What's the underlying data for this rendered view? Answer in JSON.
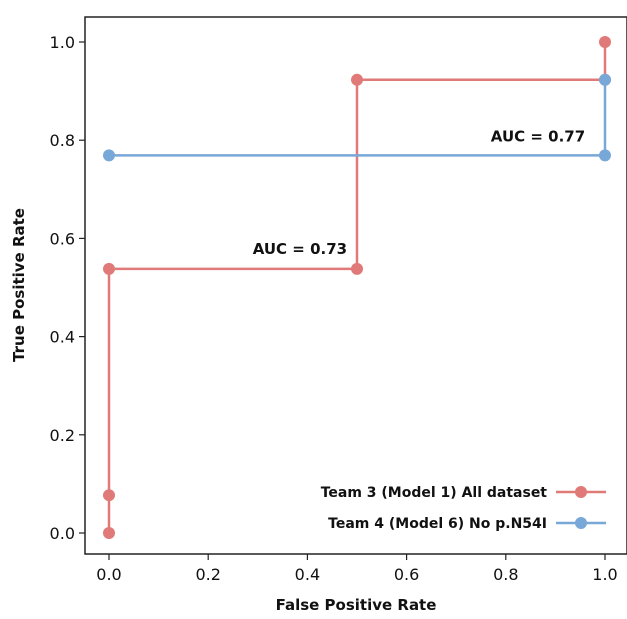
{
  "chart_data": {
    "type": "line",
    "title": "",
    "xlabel": "False Positive Rate",
    "ylabel": "True Positive Rate",
    "xlim": [
      -0.05,
      1.05
    ],
    "ylim": [
      -0.04,
      1.05
    ],
    "x_ticks": [
      "0.0",
      "0.2",
      "0.4",
      "0.6",
      "0.8",
      "1.0"
    ],
    "y_ticks": [
      "0.0",
      "0.2",
      "0.4",
      "0.6",
      "0.8",
      "1.0"
    ],
    "grid": false,
    "legend_position": "bottom-right",
    "series": [
      {
        "name": "Team 3 (Model 1) All dataset",
        "color": "#e07a78",
        "x": [
          0.0,
          0.0,
          0.0,
          0.5,
          0.5,
          1.0,
          1.0
        ],
        "y": [
          0.0,
          0.077,
          0.538,
          0.538,
          0.923,
          0.923,
          1.0
        ]
      },
      {
        "name": "Team 4 (Model 6)  No p.N54I",
        "color": "#78a8d8",
        "x": [
          0.0,
          1.0,
          1.0
        ],
        "y": [
          0.769,
          0.769,
          0.923
        ]
      }
    ],
    "annotations": [
      {
        "text": "AUC = 0.73",
        "x": 0.48,
        "y": 0.58,
        "anchor": "end"
      },
      {
        "text": "AUC = 0.77",
        "x": 0.96,
        "y": 0.81,
        "anchor": "end"
      }
    ]
  }
}
